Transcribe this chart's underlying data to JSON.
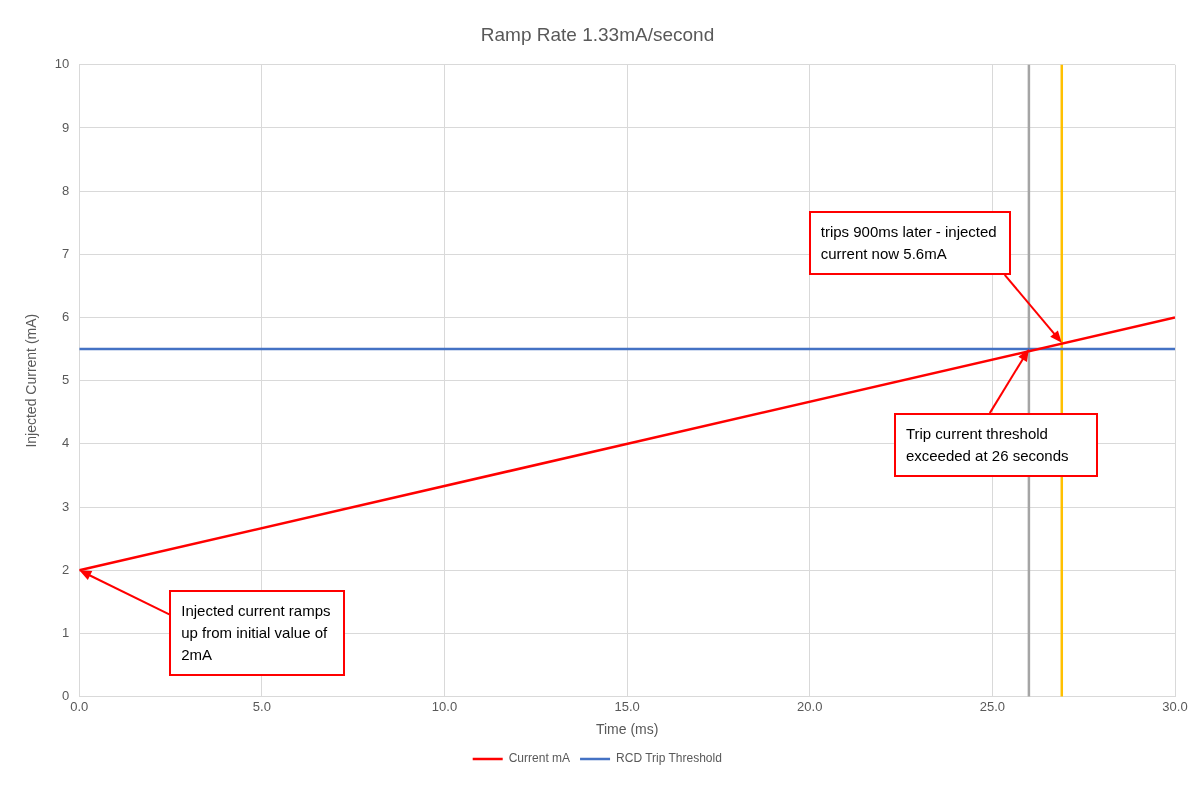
{
  "chart_data": {
    "type": "line",
    "title": "Ramp Rate 1.33mA/second",
    "xlabel": "Time (ms)",
    "ylabel": "Injected Current (mA)",
    "series": [
      {
        "name": "Current mA",
        "color": "#ff0000",
        "values": [
          2,
          6
        ]
      },
      {
        "name": "RCD Trip Threshold",
        "color": "#4472c4",
        "values": [
          5.5,
          5.5
        ]
      }
    ],
    "x": [
      0,
      30
    ],
    "xlim": [
      0,
      30
    ],
    "xticks": [
      {
        "value": 0,
        "label": "0.0"
      },
      {
        "value": 5,
        "label": "5.0"
      },
      {
        "value": 10,
        "label": "10.0"
      },
      {
        "value": 15,
        "label": "15.0"
      },
      {
        "value": 20,
        "label": "20.0"
      },
      {
        "value": 25,
        "label": "25.0"
      },
      {
        "value": 30,
        "label": "30.0"
      }
    ],
    "ylim": [
      0,
      10
    ],
    "yticks": [
      0,
      1,
      2,
      3,
      4,
      5,
      6,
      7,
      8,
      9,
      10
    ],
    "ref_lines": [
      {
        "axis": "x",
        "value": 26,
        "color": "#a5a5a5"
      },
      {
        "axis": "x",
        "value": 26.9,
        "color": "#ffc000"
      }
    ],
    "annotations": [
      {
        "text": "Injected current ramps up from initial value of 2mA",
        "x": 0,
        "y": 2
      },
      {
        "text": "trips 900ms later - injected current now 5.6mA",
        "x": 26.9,
        "y": 5.6
      },
      {
        "text": "Trip current threshold exceeded at 26 seconds",
        "x": 26,
        "y": 5.5
      }
    ],
    "grid": true,
    "legend": "bottom",
    "marker": "none",
    "line_style": "solid"
  }
}
